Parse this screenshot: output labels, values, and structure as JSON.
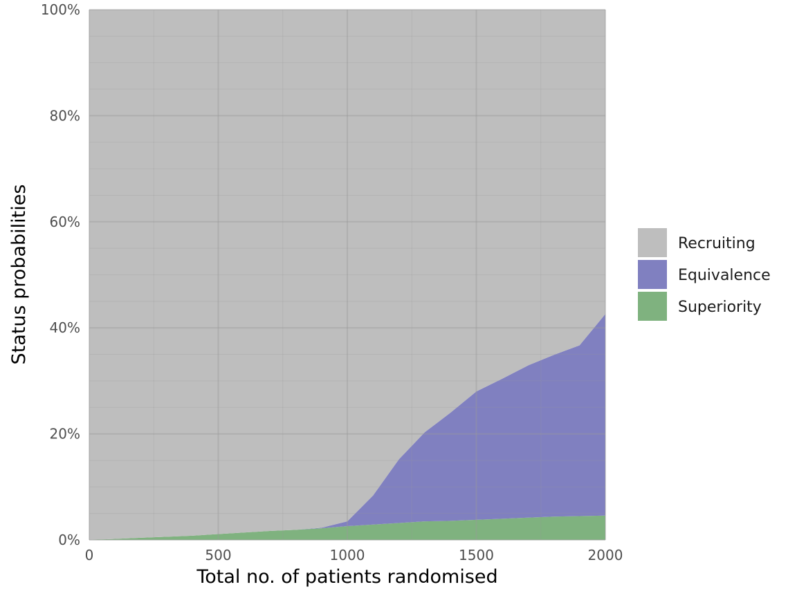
{
  "chart_data": {
    "type": "area",
    "stacked": true,
    "xlabel": "Total no. of patients randomised",
    "ylabel": "Status probabilities",
    "xlim": [
      0,
      2000
    ],
    "ylim": [
      0,
      1
    ],
    "x_ticks": [
      0,
      500,
      1000,
      1500,
      2000
    ],
    "x_tick_labels": [
      "0",
      "500",
      "1000",
      "1500",
      "2000"
    ],
    "y_ticks": [
      0,
      0.2,
      0.4,
      0.6,
      0.8,
      1.0
    ],
    "y_tick_labels": [
      "0%",
      "20%",
      "40%",
      "60%",
      "80%",
      "100%"
    ],
    "grid": true,
    "legend_position": "right",
    "x": [
      0,
      100,
      200,
      300,
      400,
      500,
      600,
      700,
      800,
      900,
      1000,
      1100,
      1200,
      1300,
      1400,
      1500,
      1600,
      1700,
      1800,
      1900,
      2000
    ],
    "series": [
      {
        "name": "Superiority",
        "color": "#7fb27f",
        "values": [
          0.0,
          0.002,
          0.004,
          0.006,
          0.008,
          0.011,
          0.014,
          0.017,
          0.019,
          0.022,
          0.026,
          0.029,
          0.032,
          0.035,
          0.036,
          0.038,
          0.04,
          0.042,
          0.044,
          0.045,
          0.046
        ]
      },
      {
        "name": "Equivalence",
        "color": "#8080c0",
        "values": [
          0.0,
          0.0,
          0.0,
          0.0,
          0.0,
          0.0,
          0.0,
          0.0,
          0.0,
          0.001,
          0.009,
          0.055,
          0.12,
          0.168,
          0.204,
          0.242,
          0.264,
          0.287,
          0.305,
          0.322,
          0.38
        ]
      },
      {
        "name": "Recruiting",
        "color": "#bebebe",
        "values": [
          1.0,
          0.998,
          0.996,
          0.994,
          0.992,
          0.989,
          0.986,
          0.983,
          0.981,
          0.977,
          0.965,
          0.916,
          0.848,
          0.797,
          0.76,
          0.72,
          0.696,
          0.671,
          0.651,
          0.633,
          0.574
        ]
      }
    ],
    "legend_order": [
      "Recruiting",
      "Equivalence",
      "Superiority"
    ]
  }
}
